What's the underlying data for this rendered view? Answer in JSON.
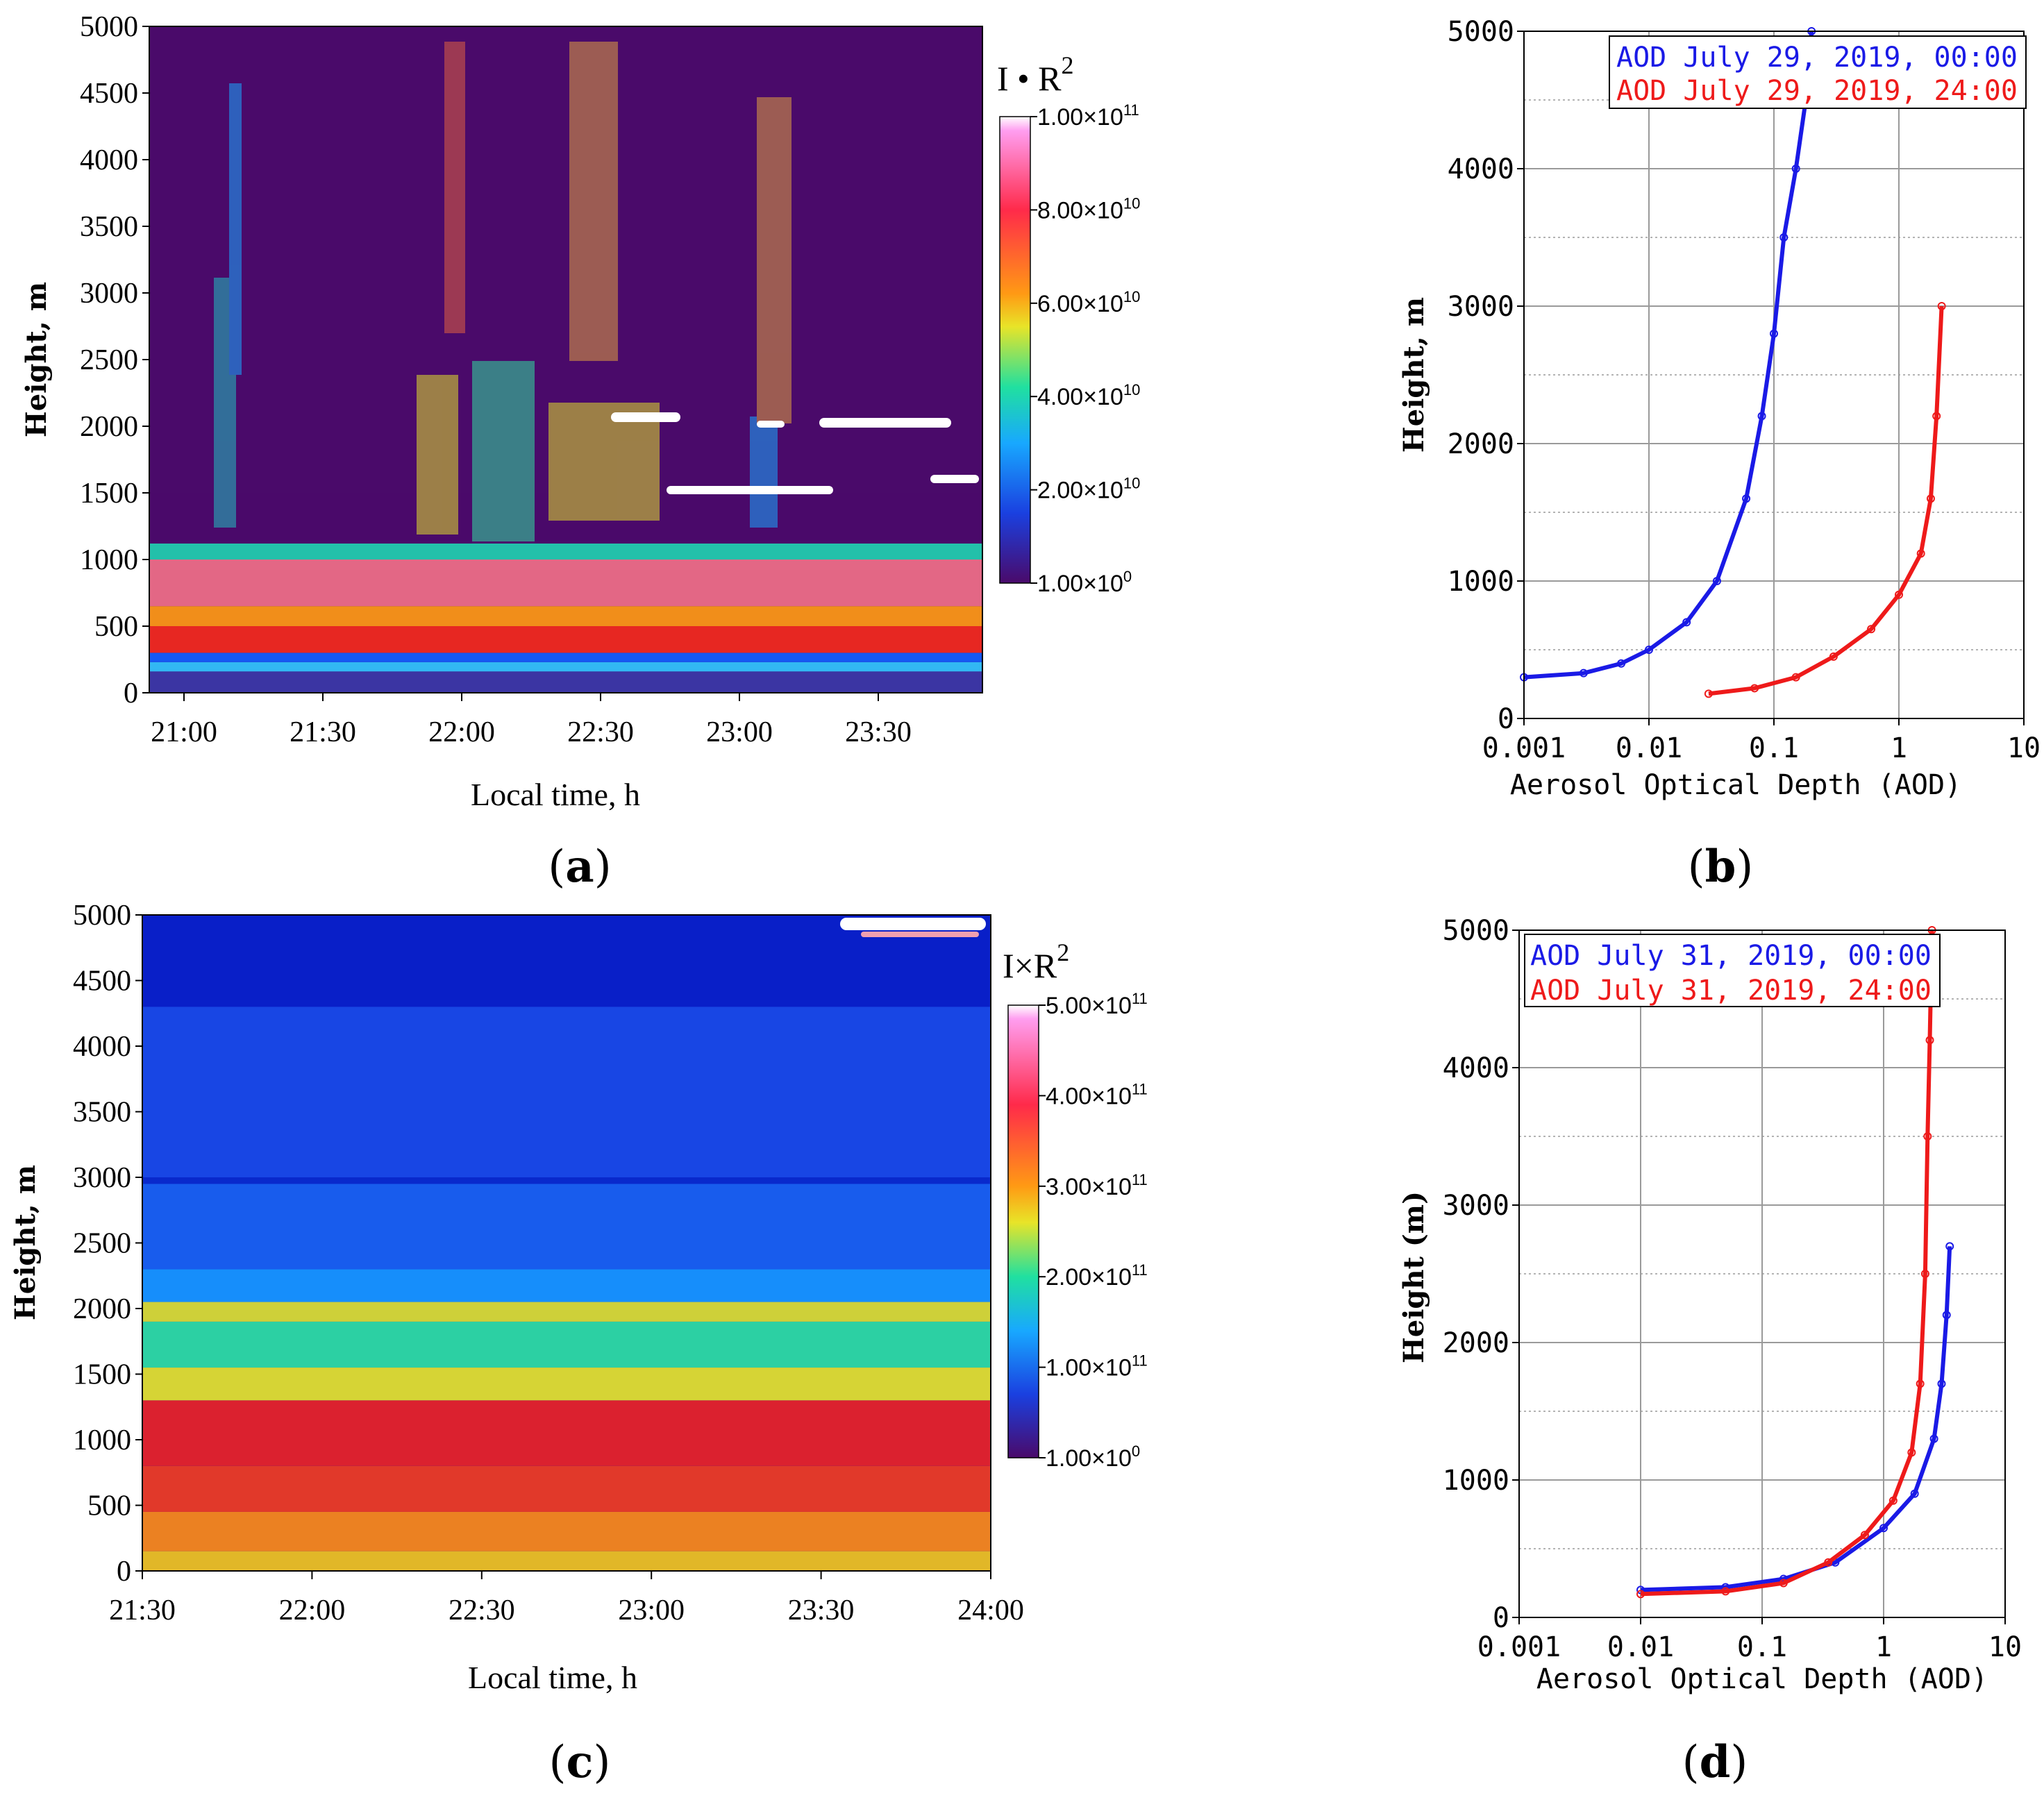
{
  "panels": {
    "a": "(a)",
    "b": "(b)",
    "c": "(c)",
    "d": "(d)"
  },
  "chart_data": [
    {
      "id": "a",
      "type": "heatmap",
      "ylabel": "Height, m",
      "xlabel": "Local time, h",
      "y_ticks": [
        "0",
        "500",
        "1000",
        "1500",
        "2000",
        "2500",
        "3000",
        "3500",
        "4000",
        "4500",
        "5000"
      ],
      "ylim": [
        0,
        5000
      ],
      "x_ticks": [
        "21:00",
        "21:30",
        "22:00",
        "22:30",
        "23:00",
        "23:30"
      ],
      "colorbar": {
        "title": "I • R",
        "title_sup": "2",
        "ticks": [
          {
            "mant": "1.00×10",
            "exp": "11"
          },
          {
            "mant": "8.00×10",
            "exp": "10"
          },
          {
            "mant": "6.00×10",
            "exp": "10"
          },
          {
            "mant": "4.00×10",
            "exp": "10"
          },
          {
            "mant": "2.00×10",
            "exp": "10"
          },
          {
            "mant": "1.00×10",
            "exp": "0"
          }
        ]
      },
      "layers": [
        {
          "from": 0,
          "to": 160,
          "color": "#3a3aa8"
        },
        {
          "from": 160,
          "to": 230,
          "color": "#30c8ff"
        },
        {
          "from": 230,
          "to": 300,
          "color": "#1060ff"
        },
        {
          "from": 300,
          "to": 500,
          "color": "#f42a1c"
        },
        {
          "from": 500,
          "to": 650,
          "color": "#ff9a14"
        },
        {
          "from": 650,
          "to": 1000,
          "color": "#f07088"
        },
        {
          "from": 1000,
          "to": 1120,
          "color": "#20d0b0"
        },
        {
          "from": 1120,
          "to": 1500,
          "color": "#4a0a6a"
        }
      ]
    },
    {
      "id": "b",
      "type": "scatter",
      "ylabel": "Height, m",
      "xlabel": "Aerosol Optical Depth (AOD)",
      "x_scale": "log",
      "xlim": [
        0.001,
        10
      ],
      "ylim": [
        0,
        5000
      ],
      "x_ticks": [
        "0.001",
        "0.01",
        "0.1",
        "1",
        "10"
      ],
      "y_ticks": [
        "0",
        "1000",
        "2000",
        "3000",
        "4000",
        "5000"
      ],
      "legend_position": "top-right",
      "series": [
        {
          "name": "AOD July 29, 2019, 00:00",
          "color": "#1a1ae6",
          "points": [
            [
              0.001,
              300
            ],
            [
              0.003,
              330
            ],
            [
              0.006,
              400
            ],
            [
              0.01,
              500
            ],
            [
              0.02,
              700
            ],
            [
              0.035,
              1000
            ],
            [
              0.06,
              1600
            ],
            [
              0.08,
              2200
            ],
            [
              0.1,
              2800
            ],
            [
              0.12,
              3500
            ],
            [
              0.15,
              4000
            ],
            [
              0.18,
              4500
            ],
            [
              0.2,
              5000
            ]
          ]
        },
        {
          "name": "AOD July 29, 2019, 24:00",
          "color": "#ee1a1a",
          "points": [
            [
              0.03,
              180
            ],
            [
              0.07,
              220
            ],
            [
              0.15,
              300
            ],
            [
              0.3,
              450
            ],
            [
              0.6,
              650
            ],
            [
              1.0,
              900
            ],
            [
              1.5,
              1200
            ],
            [
              1.8,
              1600
            ],
            [
              2.0,
              2200
            ],
            [
              2.2,
              3000
            ]
          ]
        }
      ]
    },
    {
      "id": "c",
      "type": "heatmap",
      "ylabel": "Height, m",
      "xlabel": "Local time, h",
      "y_ticks": [
        "0",
        "500",
        "1000",
        "1500",
        "2000",
        "2500",
        "3000",
        "3500",
        "4000",
        "4500",
        "5000"
      ],
      "ylim": [
        0,
        5000
      ],
      "x_ticks": [
        "21:30",
        "22:00",
        "22:30",
        "23:00",
        "23:30",
        "24:00"
      ],
      "colorbar": {
        "title": "I×R",
        "title_sup": "2",
        "ticks": [
          {
            "mant": "5.00×10",
            "exp": "11"
          },
          {
            "mant": "4.00×10",
            "exp": "11"
          },
          {
            "mant": "3.00×10",
            "exp": "11"
          },
          {
            "mant": "2.00×10",
            "exp": "11"
          },
          {
            "mant": "1.00×10",
            "exp": "11"
          },
          {
            "mant": "1.00×10",
            "exp": "0"
          }
        ]
      },
      "layers": [
        {
          "from": 0,
          "to": 150,
          "color": "#f4c41a"
        },
        {
          "from": 150,
          "to": 450,
          "color": "#ff8a14"
        },
        {
          "from": 450,
          "to": 800,
          "color": "#f43c1c"
        },
        {
          "from": 800,
          "to": 1300,
          "color": "#ee2222"
        },
        {
          "from": 1300,
          "to": 1550,
          "color": "#e8e428"
        },
        {
          "from": 1550,
          "to": 1900,
          "color": "#30e0a0"
        },
        {
          "from": 1900,
          "to": 2050,
          "color": "#e0e02c"
        },
        {
          "from": 2050,
          "to": 2300,
          "color": "#1898ff"
        },
        {
          "from": 2300,
          "to": 2950,
          "color": "#1a62f0"
        },
        {
          "from": 2950,
          "to": 3000,
          "color": "#0a2acc"
        },
        {
          "from": 3000,
          "to": 4300,
          "color": "#1a4ae6"
        },
        {
          "from": 4300,
          "to": 5000,
          "color": "#0a20c8"
        }
      ]
    },
    {
      "id": "d",
      "type": "scatter",
      "ylabel": "Height (m)",
      "xlabel": "Aerosol Optical Depth (AOD)",
      "x_scale": "log",
      "xlim": [
        0.001,
        10
      ],
      "ylim": [
        0,
        5000
      ],
      "x_ticks": [
        "0.001",
        "0.01",
        "0.1",
        "1",
        "10"
      ],
      "y_ticks": [
        "0",
        "1000",
        "2000",
        "3000",
        "4000",
        "5000"
      ],
      "legend_position": "top-left",
      "series": [
        {
          "name": "AOD July 31, 2019, 00:00",
          "color": "#1a1ae6",
          "points": [
            [
              0.01,
              200
            ],
            [
              0.05,
              220
            ],
            [
              0.15,
              280
            ],
            [
              0.4,
              400
            ],
            [
              1.0,
              650
            ],
            [
              1.8,
              900
            ],
            [
              2.6,
              1300
            ],
            [
              3.0,
              1700
            ],
            [
              3.3,
              2200
            ],
            [
              3.5,
              2700
            ]
          ]
        },
        {
          "name": "AOD July 31, 2019, 24:00",
          "color": "#ee1a1a",
          "points": [
            [
              0.01,
              170
            ],
            [
              0.05,
              190
            ],
            [
              0.15,
              250
            ],
            [
              0.35,
              400
            ],
            [
              0.7,
              600
            ],
            [
              1.2,
              850
            ],
            [
              1.7,
              1200
            ],
            [
              2.0,
              1700
            ],
            [
              2.2,
              2500
            ],
            [
              2.3,
              3500
            ],
            [
              2.4,
              4200
            ],
            [
              2.5,
              5000
            ]
          ]
        }
      ]
    }
  ]
}
